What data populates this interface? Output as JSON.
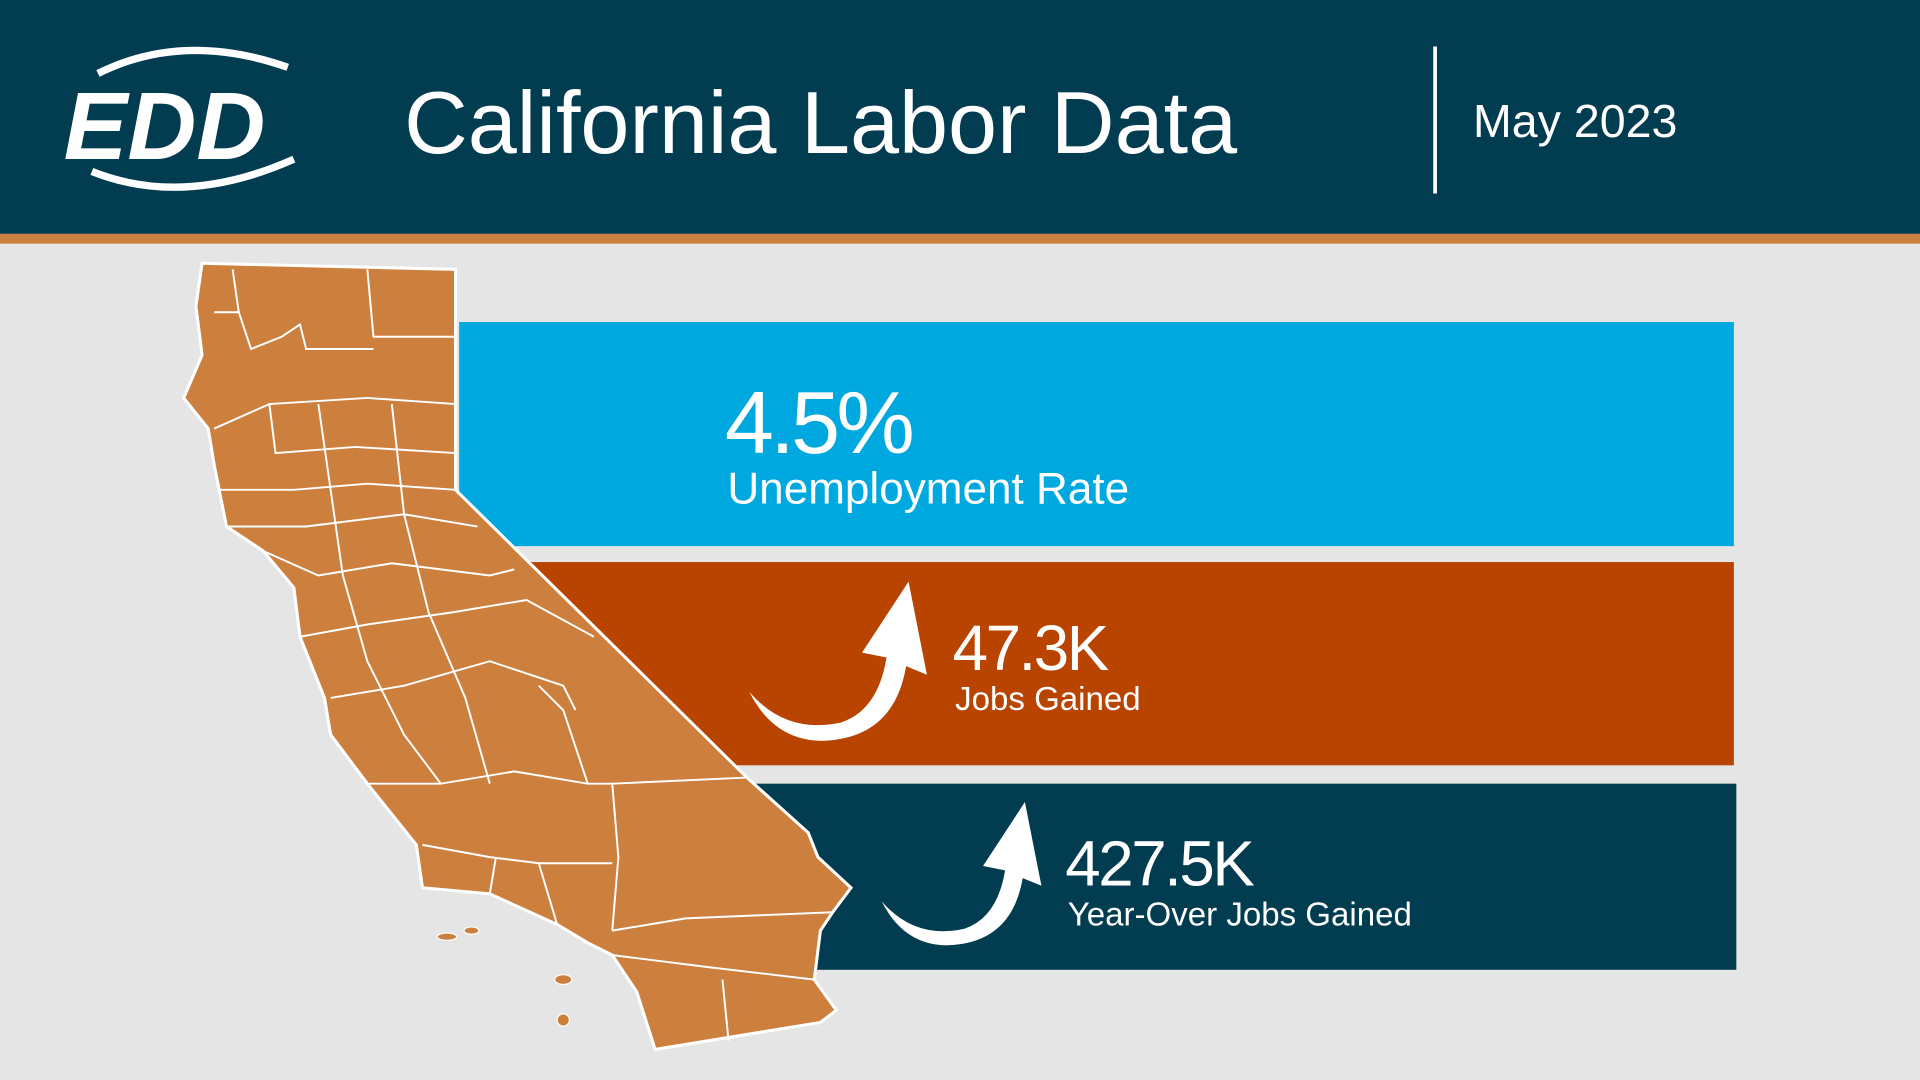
{
  "header": {
    "logo": "EDD",
    "title": "California Labor Data",
    "date": "May 2023"
  },
  "stats": [
    {
      "value": "4.5%",
      "label": "Unemployment Rate"
    },
    {
      "value": "47.3K",
      "label": "Jobs Gained"
    },
    {
      "value": "427.5K",
      "label": "Year-Over Jobs Gained"
    }
  ]
}
